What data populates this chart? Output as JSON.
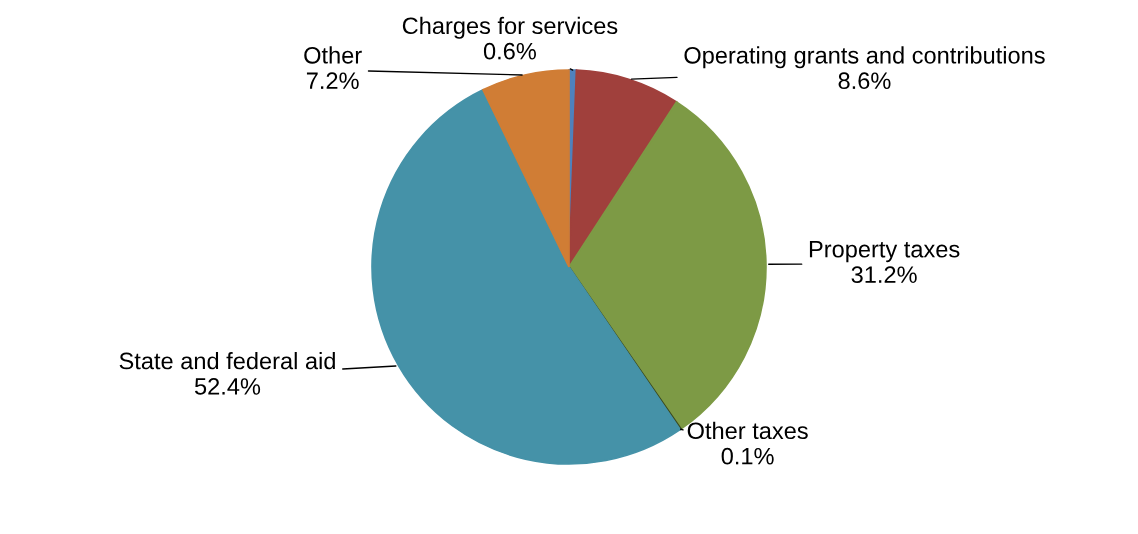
{
  "chart_data": {
    "type": "pie",
    "categories": [
      "Charges for services",
      "Operating grants and contributions",
      "Property taxes",
      "Other taxes",
      "State and federal aid",
      "Other"
    ],
    "values": [
      0.6,
      8.6,
      31.2,
      0.1,
      52.4,
      7.2
    ],
    "colors": [
      "#4f81bd",
      "#a0403c",
      "#7d9a45",
      "#3b4a1f",
      "#4592a8",
      "#d07d35"
    ],
    "value_labels": [
      "0.6%",
      "8.6%",
      "31.2%",
      "0.1%",
      "52.4%",
      "7.2%"
    ],
    "legend": false
  }
}
